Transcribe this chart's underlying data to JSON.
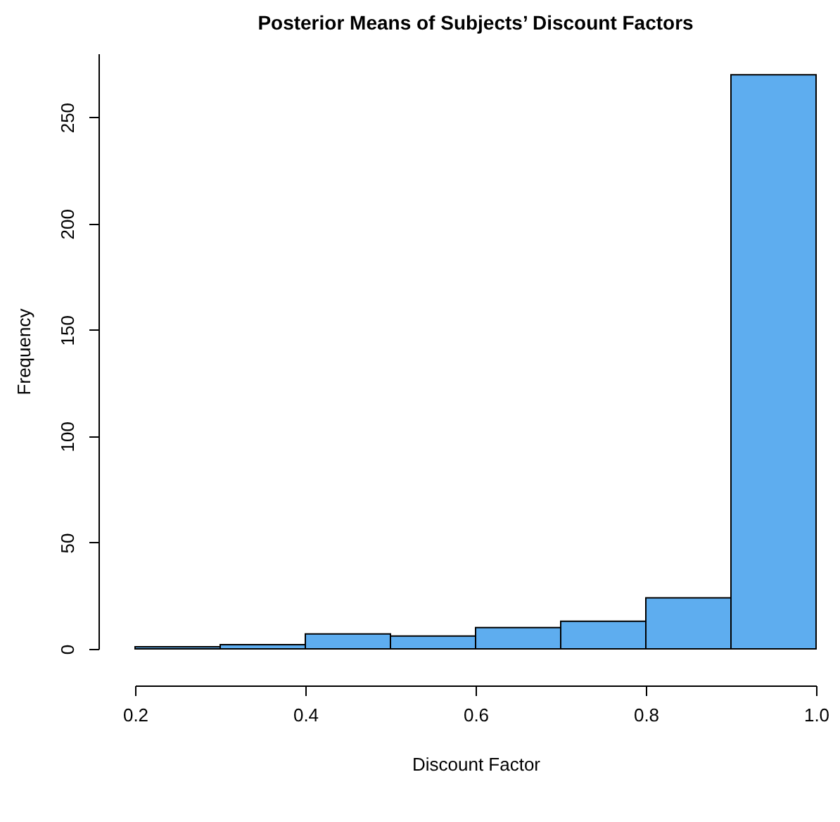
{
  "chart_data": {
    "type": "histogram",
    "title": "Posterior Means of Subjects’ Discount Factors",
    "xlabel": "Discount Factor",
    "ylabel": "Frequency",
    "bins": [
      0.2,
      0.3,
      0.4,
      0.5,
      0.6,
      0.7,
      0.8,
      0.9,
      1.0
    ],
    "values": [
      1,
      2,
      7,
      6,
      10,
      13,
      24,
      270
    ],
    "color": "#5eadef",
    "xlim": [
      0.2,
      1.0
    ],
    "xticks": [
      {
        "value": 0.2,
        "label": "0.2"
      },
      {
        "value": 0.4,
        "label": "0.4"
      },
      {
        "value": 0.6,
        "label": "0.6"
      },
      {
        "value": 0.8,
        "label": "0.8"
      },
      {
        "value": 1.0,
        "label": "1.0"
      }
    ],
    "ylim": [
      0,
      280
    ],
    "yticks": [
      0,
      50,
      100,
      150,
      200,
      250
    ],
    "grid": false
  }
}
